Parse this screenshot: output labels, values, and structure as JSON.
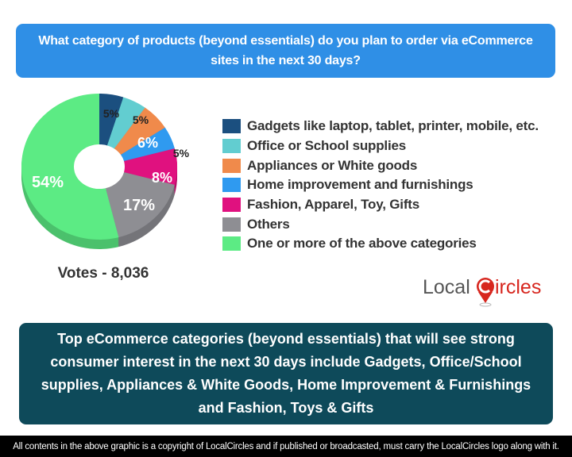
{
  "header": {
    "question": "What category of products (beyond essentials) do you plan to order via eCommerce sites in the next 30 days?"
  },
  "votes_label": "Votes - 8,036",
  "legend": [
    {
      "label": "Gadgets like laptop, tablet, printer, mobile, etc.",
      "color": "#1b4f7f"
    },
    {
      "label": "Office or School supplies",
      "color": "#62cdd0"
    },
    {
      "label": "Appliances or White goods",
      "color": "#f08a4b"
    },
    {
      "label": "Home improvement and furnishings",
      "color": "#2f9af0"
    },
    {
      "label": "Fashion, Apparel, Toy, Gifts",
      "color": "#e0117f"
    },
    {
      "label": "Others",
      "color": "#8e8e93"
    },
    {
      "label": "One or more of the above categories",
      "color": "#5ceb84"
    }
  ],
  "logo": {
    "text_left": "Local",
    "text_right": "ircles",
    "accent": "#d7261e"
  },
  "summary": "Top eCommerce categories (beyond essentials) that will see strong consumer interest in the next 30 days include Gadgets, Office/School supplies, Appliances & White Goods, Home Improvement & Furnishings and Fashion, Toys & Gifts",
  "footer": "All contents in the above graphic is a copyright of LocalCircles and if published or broadcasted, must carry the LocalCircles logo along with it.",
  "chart_data": {
    "type": "pie",
    "subtype": "3d-donut",
    "title": "What category of products (beyond essentials) do you plan to order via eCommerce sites in the next 30 days?",
    "categories": [
      "Gadgets like laptop, tablet, printer, mobile, etc.",
      "Office or School supplies",
      "Appliances or White goods",
      "Home improvement and furnishings",
      "Fashion, Apparel, Toy, Gifts",
      "Others",
      "One or more of the above categories"
    ],
    "values": [
      5,
      5,
      6,
      5,
      8,
      17,
      54
    ],
    "labels": [
      "5%",
      "5%",
      "6%",
      "5%",
      "8%",
      "17%",
      "54%"
    ],
    "colors": [
      "#1b4f7f",
      "#62cdd0",
      "#f08a4b",
      "#2f9af0",
      "#e0117f",
      "#8e8e93",
      "#5ceb84"
    ],
    "legend_position": "right",
    "total_votes": "8,036"
  }
}
